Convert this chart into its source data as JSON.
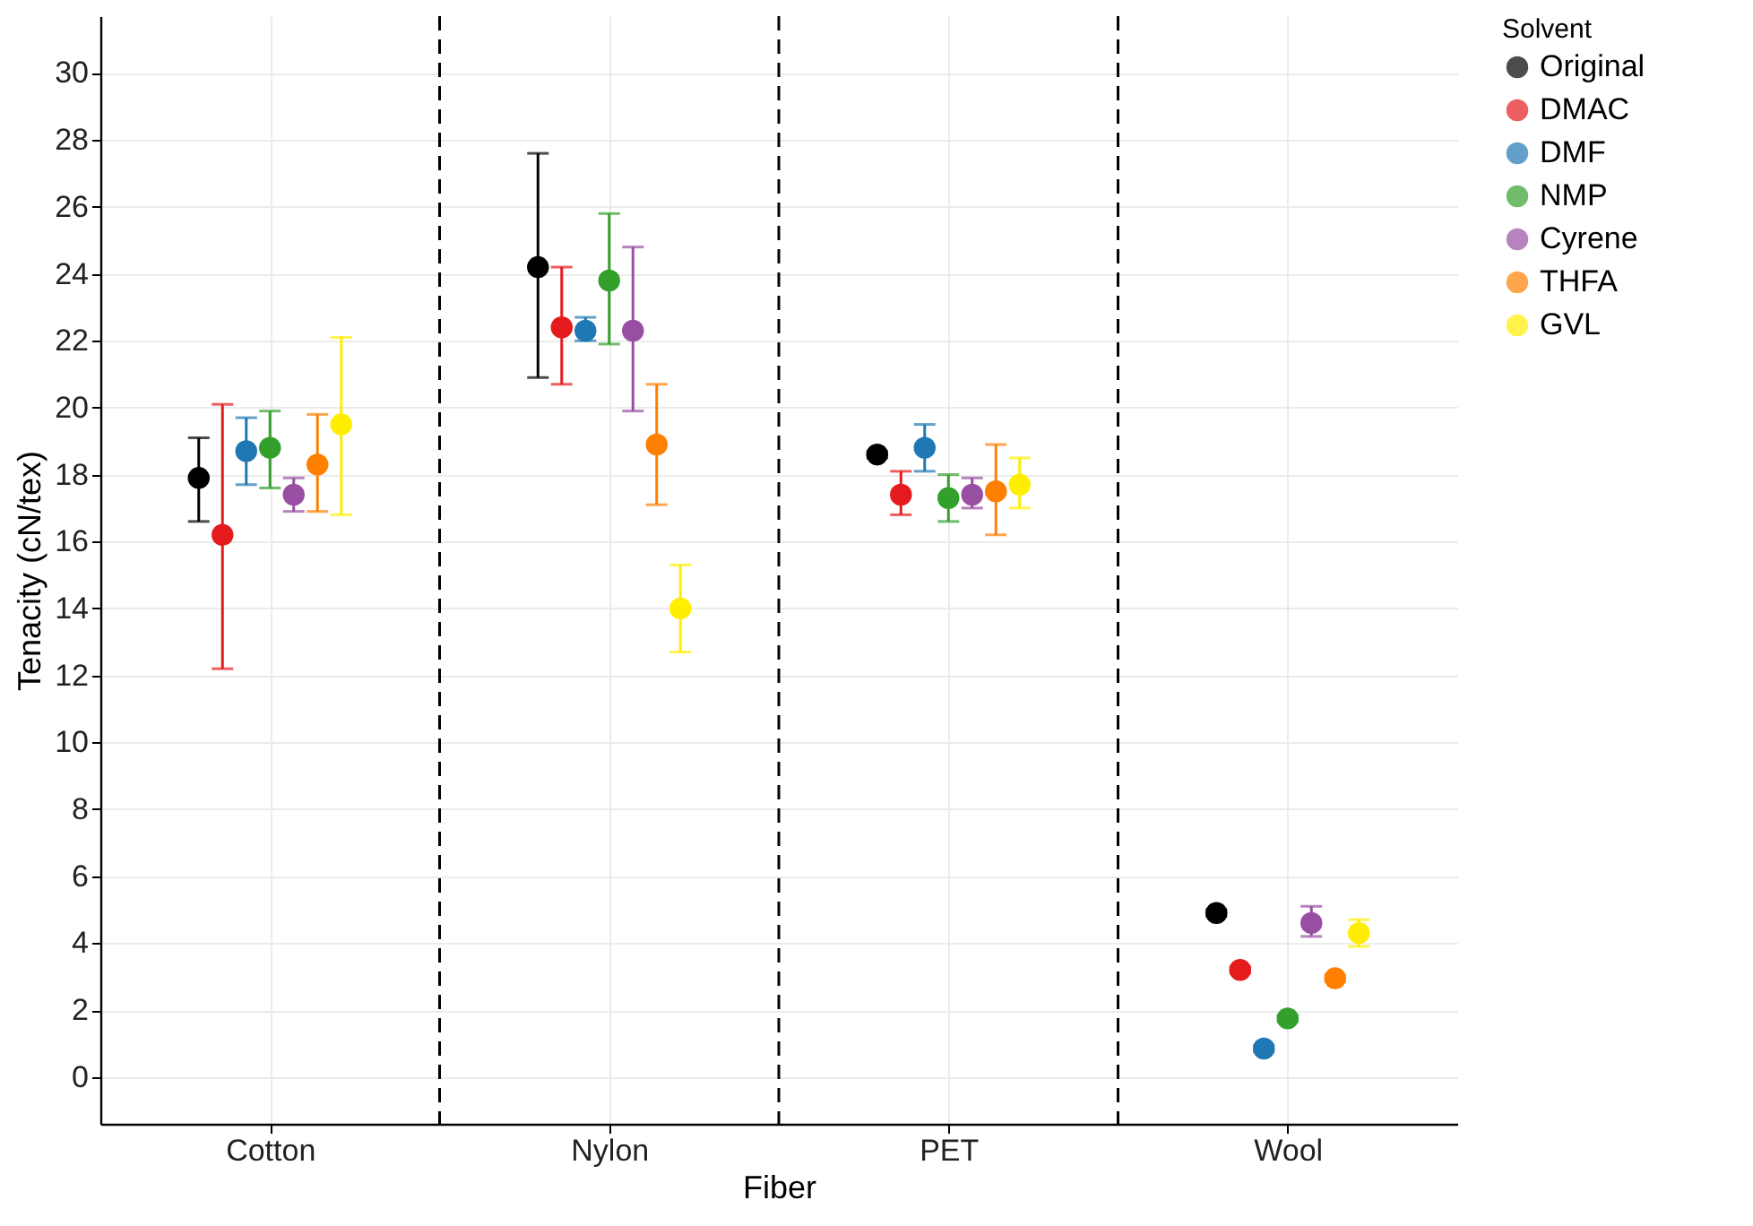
{
  "chart_data": {
    "type": "scatter",
    "xlabel": "Fiber",
    "ylabel": "Tenacity (cN/tex)",
    "legend_title": "Solvent",
    "legend": "right",
    "grid": true,
    "marker": "circle",
    "categories": [
      "Cotton",
      "Nylon",
      "PET",
      "Wool"
    ],
    "ylim": [
      -1.4,
      31.7
    ],
    "yticks": [
      0,
      2,
      4,
      6,
      8,
      10,
      12,
      14,
      16,
      18,
      20,
      22,
      24,
      26,
      28,
      30
    ],
    "series": [
      {
        "name": "Original",
        "color": "#000000",
        "values": [
          17.9,
          24.2,
          18.6,
          4.9
        ],
        "errors": [
          [
            16.6,
            19.1
          ],
          [
            20.9,
            27.6
          ],
          [
            18.5,
            18.7
          ],
          [
            4.8,
            5.0
          ]
        ]
      },
      {
        "name": "DMAC",
        "color": "#e41a1c",
        "values": [
          16.2,
          22.4,
          17.4,
          3.2
        ],
        "errors": [
          [
            12.2,
            20.1
          ],
          [
            20.7,
            24.2
          ],
          [
            16.8,
            18.1
          ],
          [
            3.1,
            3.3
          ]
        ]
      },
      {
        "name": "DMF",
        "color": "#1f78b4",
        "values": [
          18.7,
          22.3,
          18.8,
          0.85
        ],
        "errors": [
          [
            17.7,
            19.7
          ],
          [
            22.0,
            22.7
          ],
          [
            18.1,
            19.5
          ],
          [
            0.75,
            0.95
          ]
        ]
      },
      {
        "name": "NMP",
        "color": "#33a02c",
        "values": [
          18.8,
          23.8,
          17.3,
          1.75
        ],
        "errors": [
          [
            17.6,
            19.9
          ],
          [
            21.9,
            25.8
          ],
          [
            16.6,
            18.0
          ],
          [
            1.65,
            1.85
          ]
        ]
      },
      {
        "name": "Cyrene",
        "color": "#984ea3",
        "values": [
          17.4,
          22.3,
          17.4,
          4.6
        ],
        "errors": [
          [
            16.9,
            17.9
          ],
          [
            19.9,
            24.8
          ],
          [
            17.0,
            17.9
          ],
          [
            4.2,
            5.1
          ]
        ]
      },
      {
        "name": "THFA",
        "color": "#ff7f00",
        "values": [
          18.3,
          18.9,
          17.5,
          2.95
        ],
        "errors": [
          [
            16.9,
            19.8
          ],
          [
            17.1,
            20.7
          ],
          [
            16.2,
            18.9
          ],
          [
            2.85,
            3.05
          ]
        ]
      },
      {
        "name": "GVL",
        "color": "#ffee00",
        "values": [
          19.5,
          14.0,
          17.7,
          4.3
        ],
        "errors": [
          [
            16.8,
            22.1
          ],
          [
            12.7,
            15.3
          ],
          [
            17.0,
            18.5
          ],
          [
            3.9,
            4.7
          ]
        ]
      }
    ]
  }
}
